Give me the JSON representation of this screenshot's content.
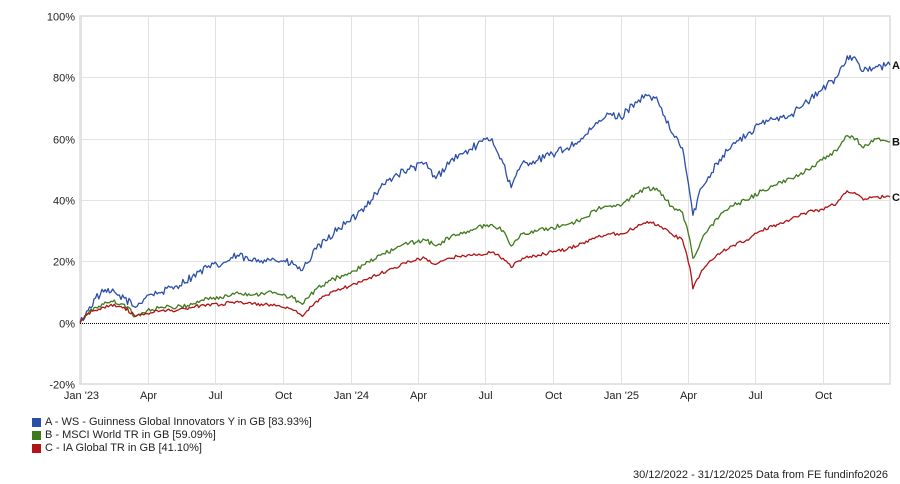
{
  "chart_data": {
    "type": "line",
    "date_range": "30/12/2022 - 31/12/2025",
    "x_start": "2022-12-30",
    "x_end": "2025-12-31",
    "x_ticks": [
      {
        "date": "2023-01-01",
        "label": "Jan '23"
      },
      {
        "date": "2023-04-01",
        "label": "Apr"
      },
      {
        "date": "2023-07-01",
        "label": "Jul"
      },
      {
        "date": "2023-10-01",
        "label": "Oct"
      },
      {
        "date": "2024-01-01",
        "label": "Jan '24"
      },
      {
        "date": "2024-04-01",
        "label": "Apr"
      },
      {
        "date": "2024-07-01",
        "label": "Jul"
      },
      {
        "date": "2024-10-01",
        "label": "Oct"
      },
      {
        "date": "2025-01-01",
        "label": "Jan '25"
      },
      {
        "date": "2025-04-01",
        "label": "Apr"
      },
      {
        "date": "2025-07-01",
        "label": "Jul"
      },
      {
        "date": "2025-10-01",
        "label": "Oct"
      }
    ],
    "y_ticks": [
      {
        "value": -20,
        "label": "-20%"
      },
      {
        "value": 0,
        "label": "0%"
      },
      {
        "value": 20,
        "label": "20%"
      },
      {
        "value": 40,
        "label": "40%"
      },
      {
        "value": 60,
        "label": "60%"
      },
      {
        "value": 80,
        "label": "80%"
      },
      {
        "value": 100,
        "label": "100%"
      }
    ],
    "ylim": [
      -20,
      100
    ],
    "grid": "vertical and horizontal",
    "legend_position": "bottom-left",
    "series": [
      {
        "id": "A",
        "name": "A - WS - Guinness Global Innovators Y in GB [83.93%]",
        "color": "#2b4fa8",
        "points": [
          [
            "2022-12-30",
            0
          ],
          [
            "2023-01-10",
            4
          ],
          [
            "2023-01-20",
            8
          ],
          [
            "2023-01-31",
            10
          ],
          [
            "2023-02-10",
            10
          ],
          [
            "2023-02-28",
            8
          ],
          [
            "2023-03-15",
            5
          ],
          [
            "2023-03-31",
            9
          ],
          [
            "2023-04-20",
            10
          ],
          [
            "2023-05-10",
            12
          ],
          [
            "2023-05-31",
            15
          ],
          [
            "2023-06-20",
            18
          ],
          [
            "2023-07-10",
            19
          ],
          [
            "2023-07-31",
            22
          ],
          [
            "2023-08-20",
            20
          ],
          [
            "2023-09-10",
            21
          ],
          [
            "2023-09-30",
            20
          ],
          [
            "2023-10-15",
            19
          ],
          [
            "2023-10-27",
            17
          ],
          [
            "2023-11-15",
            24
          ],
          [
            "2023-11-30",
            27
          ],
          [
            "2023-12-15",
            31
          ],
          [
            "2023-12-31",
            33
          ],
          [
            "2024-01-20",
            38
          ],
          [
            "2024-02-10",
            44
          ],
          [
            "2024-02-29",
            48
          ],
          [
            "2024-03-20",
            50
          ],
          [
            "2024-04-10",
            52
          ],
          [
            "2024-04-25",
            47
          ],
          [
            "2024-05-15",
            53
          ],
          [
            "2024-05-31",
            55
          ],
          [
            "2024-06-20",
            58
          ],
          [
            "2024-07-10",
            60
          ],
          [
            "2024-07-25",
            52
          ],
          [
            "2024-08-05",
            44
          ],
          [
            "2024-08-20",
            52
          ],
          [
            "2024-09-10",
            53
          ],
          [
            "2024-09-30",
            55
          ],
          [
            "2024-10-20",
            57
          ],
          [
            "2024-11-10",
            60
          ],
          [
            "2024-11-30",
            65
          ],
          [
            "2024-12-15",
            68
          ],
          [
            "2024-12-31",
            67
          ],
          [
            "2025-01-20",
            72
          ],
          [
            "2025-02-05",
            74
          ],
          [
            "2025-02-20",
            72
          ],
          [
            "2025-03-10",
            62
          ],
          [
            "2025-03-25",
            57
          ],
          [
            "2025-04-04",
            42
          ],
          [
            "2025-04-08",
            35
          ],
          [
            "2025-04-20",
            44
          ],
          [
            "2025-05-10",
            52
          ],
          [
            "2025-05-31",
            58
          ],
          [
            "2025-06-20",
            61
          ],
          [
            "2025-07-10",
            65
          ],
          [
            "2025-07-31",
            67
          ],
          [
            "2025-08-20",
            68
          ],
          [
            "2025-09-10",
            72
          ],
          [
            "2025-09-30",
            76
          ],
          [
            "2025-10-20",
            80
          ],
          [
            "2025-11-03",
            87
          ],
          [
            "2025-11-15",
            86
          ],
          [
            "2025-11-25",
            82
          ],
          [
            "2025-12-10",
            83
          ],
          [
            "2025-12-31",
            84
          ]
        ]
      },
      {
        "id": "B",
        "name": "B - MSCI World TR in GB [59.09%]",
        "color": "#3f7a1c",
        "points": [
          [
            "2022-12-30",
            0
          ],
          [
            "2023-01-10",
            3
          ],
          [
            "2023-01-20",
            5
          ],
          [
            "2023-01-31",
            6
          ],
          [
            "2023-02-10",
            7
          ],
          [
            "2023-02-28",
            6
          ],
          [
            "2023-03-15",
            2
          ],
          [
            "2023-03-31",
            4
          ],
          [
            "2023-04-20",
            5
          ],
          [
            "2023-05-10",
            5
          ],
          [
            "2023-05-31",
            6
          ],
          [
            "2023-06-20",
            8
          ],
          [
            "2023-07-10",
            8
          ],
          [
            "2023-07-31",
            10
          ],
          [
            "2023-08-20",
            9
          ],
          [
            "2023-09-10",
            10
          ],
          [
            "2023-09-30",
            9
          ],
          [
            "2023-10-15",
            8
          ],
          [
            "2023-10-27",
            6
          ],
          [
            "2023-11-15",
            11
          ],
          [
            "2023-11-30",
            13
          ],
          [
            "2023-12-15",
            15
          ],
          [
            "2023-12-31",
            16
          ],
          [
            "2024-01-20",
            19
          ],
          [
            "2024-02-10",
            22
          ],
          [
            "2024-02-29",
            24
          ],
          [
            "2024-03-20",
            26
          ],
          [
            "2024-04-10",
            27
          ],
          [
            "2024-04-25",
            25
          ],
          [
            "2024-05-15",
            28
          ],
          [
            "2024-05-31",
            29
          ],
          [
            "2024-06-20",
            31
          ],
          [
            "2024-07-10",
            32
          ],
          [
            "2024-07-25",
            30
          ],
          [
            "2024-08-05",
            25
          ],
          [
            "2024-08-20",
            29
          ],
          [
            "2024-09-10",
            30
          ],
          [
            "2024-09-30",
            31
          ],
          [
            "2024-10-20",
            32
          ],
          [
            "2024-11-10",
            34
          ],
          [
            "2024-11-30",
            37
          ],
          [
            "2024-12-15",
            38
          ],
          [
            "2024-12-31",
            38
          ],
          [
            "2025-01-20",
            42
          ],
          [
            "2025-02-05",
            44
          ],
          [
            "2025-02-20",
            43
          ],
          [
            "2025-03-10",
            38
          ],
          [
            "2025-03-25",
            36
          ],
          [
            "2025-04-04",
            27
          ],
          [
            "2025-04-08",
            21
          ],
          [
            "2025-04-20",
            27
          ],
          [
            "2025-05-10",
            34
          ],
          [
            "2025-05-31",
            38
          ],
          [
            "2025-06-20",
            40
          ],
          [
            "2025-07-10",
            43
          ],
          [
            "2025-07-31",
            45
          ],
          [
            "2025-08-20",
            47
          ],
          [
            "2025-09-10",
            50
          ],
          [
            "2025-09-30",
            53
          ],
          [
            "2025-10-20",
            56
          ],
          [
            "2025-11-03",
            61
          ],
          [
            "2025-11-15",
            60
          ],
          [
            "2025-11-25",
            57
          ],
          [
            "2025-12-10",
            60
          ],
          [
            "2025-12-31",
            59
          ]
        ]
      },
      {
        "id": "C",
        "name": "C - IA Global TR in GB [41.10%]",
        "color": "#b01414",
        "points": [
          [
            "2022-12-30",
            0
          ],
          [
            "2023-01-10",
            3
          ],
          [
            "2023-01-20",
            4
          ],
          [
            "2023-01-31",
            5
          ],
          [
            "2023-02-10",
            6
          ],
          [
            "2023-02-28",
            5
          ],
          [
            "2023-03-15",
            2
          ],
          [
            "2023-03-31",
            3
          ],
          [
            "2023-04-20",
            4
          ],
          [
            "2023-05-10",
            4
          ],
          [
            "2023-05-31",
            5
          ],
          [
            "2023-06-20",
            6
          ],
          [
            "2023-07-10",
            6
          ],
          [
            "2023-07-31",
            7
          ],
          [
            "2023-08-20",
            6
          ],
          [
            "2023-09-10",
            6
          ],
          [
            "2023-09-30",
            5
          ],
          [
            "2023-10-15",
            4
          ],
          [
            "2023-10-27",
            2
          ],
          [
            "2023-11-15",
            7
          ],
          [
            "2023-11-30",
            9
          ],
          [
            "2023-12-15",
            11
          ],
          [
            "2023-12-31",
            12
          ],
          [
            "2024-01-20",
            14
          ],
          [
            "2024-02-10",
            16
          ],
          [
            "2024-02-29",
            18
          ],
          [
            "2024-03-20",
            20
          ],
          [
            "2024-04-10",
            21
          ],
          [
            "2024-04-25",
            19
          ],
          [
            "2024-05-15",
            21
          ],
          [
            "2024-05-31",
            22
          ],
          [
            "2024-06-20",
            22
          ],
          [
            "2024-07-10",
            23
          ],
          [
            "2024-07-25",
            21
          ],
          [
            "2024-08-05",
            18
          ],
          [
            "2024-08-20",
            21
          ],
          [
            "2024-09-10",
            22
          ],
          [
            "2024-09-30",
            23
          ],
          [
            "2024-10-20",
            24
          ],
          [
            "2024-11-10",
            26
          ],
          [
            "2024-11-30",
            28
          ],
          [
            "2024-12-15",
            29
          ],
          [
            "2024-12-31",
            29
          ],
          [
            "2025-01-20",
            31
          ],
          [
            "2025-02-05",
            33
          ],
          [
            "2025-02-20",
            32
          ],
          [
            "2025-03-10",
            29
          ],
          [
            "2025-03-25",
            27
          ],
          [
            "2025-04-04",
            18
          ],
          [
            "2025-04-08",
            11
          ],
          [
            "2025-04-20",
            17
          ],
          [
            "2025-05-10",
            22
          ],
          [
            "2025-05-31",
            25
          ],
          [
            "2025-06-20",
            27
          ],
          [
            "2025-07-10",
            30
          ],
          [
            "2025-07-31",
            32
          ],
          [
            "2025-08-20",
            34
          ],
          [
            "2025-09-10",
            36
          ],
          [
            "2025-09-30",
            37
          ],
          [
            "2025-10-20",
            39
          ],
          [
            "2025-11-03",
            43
          ],
          [
            "2025-11-15",
            42
          ],
          [
            "2025-11-25",
            40
          ],
          [
            "2025-12-10",
            41
          ],
          [
            "2025-12-31",
            41
          ]
        ]
      }
    ]
  },
  "footer": {
    "date_range": "30/12/2022 - 31/12/2025",
    "source": "Data from FE fundinfo2026"
  }
}
